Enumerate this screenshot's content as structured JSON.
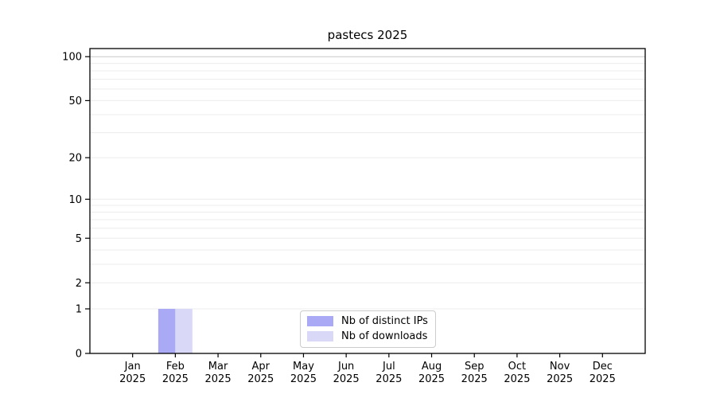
{
  "chart_data": {
    "type": "bar",
    "title": "pastecs 2025",
    "x": {
      "categories": [
        "Jan",
        "Feb",
        "Mar",
        "Apr",
        "May",
        "Jun",
        "Jul",
        "Aug",
        "Sep",
        "Oct",
        "Nov",
        "Dec"
      ],
      "year_line": "2025"
    },
    "y_axis": {
      "scale": "log1p",
      "tick_labels": [
        100,
        50,
        20,
        10,
        5,
        2,
        1,
        0
      ],
      "gridlines": [
        1,
        2,
        3,
        4,
        5,
        6,
        7,
        8,
        9,
        10,
        20,
        30,
        40,
        50,
        60,
        70,
        80,
        90,
        100
      ],
      "ylim": [
        0,
        115
      ],
      "grid": "on"
    },
    "series": [
      {
        "name": "Nb of distinct IPs",
        "color": "#a9a9f5",
        "values": [
          0,
          1,
          0,
          0,
          0,
          0,
          0,
          0,
          0,
          0,
          0,
          0
        ]
      },
      {
        "name": "Nb of downloads",
        "color": "#d9d9f7",
        "values": [
          0,
          1,
          0,
          0,
          0,
          0,
          0,
          0,
          0,
          0,
          0,
          0
        ]
      }
    ],
    "legend": {
      "position": "lower center"
    }
  },
  "colors": {
    "background": "#ffffff",
    "axis": "#000000",
    "gridline_major": "#c8c8c8",
    "gridline_minor": "#ececec",
    "legend_border": "#cccccc",
    "text": "#000000"
  }
}
